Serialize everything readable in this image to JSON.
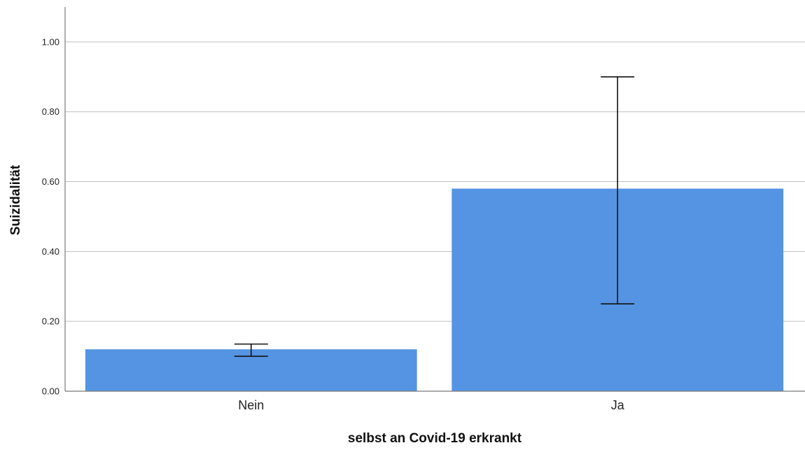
{
  "chart_data": {
    "type": "bar",
    "title": "",
    "xlabel": "selbst an Covid-19 erkrankt",
    "ylabel": "Suizidalität",
    "categories": [
      "Nein",
      "Ja"
    ],
    "values": [
      0.12,
      0.58
    ],
    "error_bars": [
      {
        "low": 0.1,
        "high": 0.135
      },
      {
        "low": 0.25,
        "high": 0.9
      }
    ],
    "ylim": [
      0,
      1.1
    ],
    "yticks": [
      "0.00",
      "0.20",
      "0.40",
      "0.60",
      "0.80",
      "1.00"
    ],
    "ytick_values": [
      0,
      0.2,
      0.4,
      0.6,
      0.8,
      1.0
    ],
    "grid": true,
    "legend": "none",
    "colors": {
      "bar": "#5594e3",
      "error_bar": "#111111",
      "grid": "#bfbfbf",
      "axis": "#7a7a7a"
    }
  }
}
